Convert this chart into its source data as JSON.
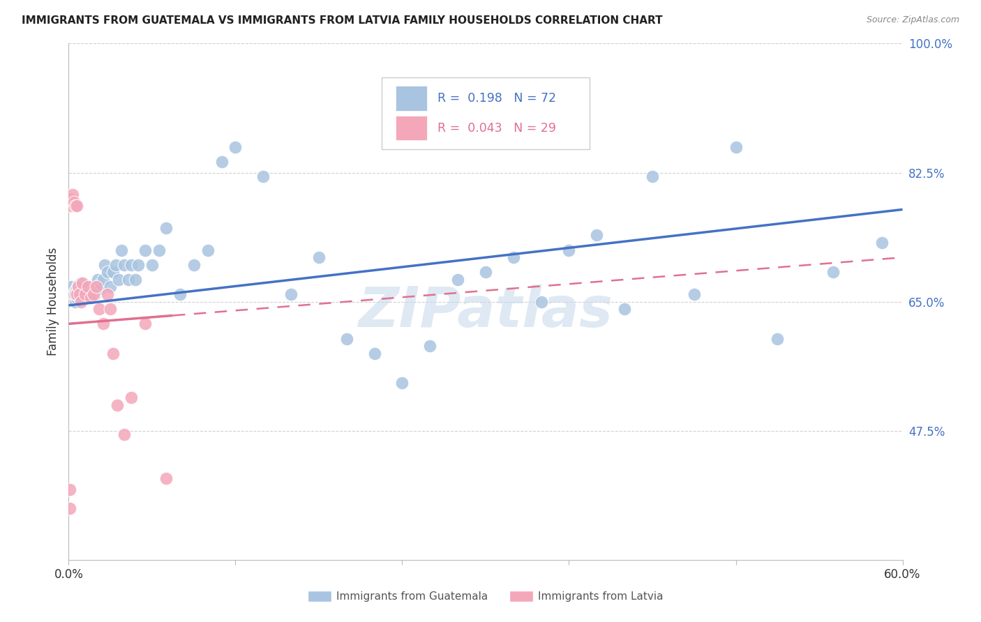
{
  "title": "IMMIGRANTS FROM GUATEMALA VS IMMIGRANTS FROM LATVIA FAMILY HOUSEHOLDS CORRELATION CHART",
  "source": "Source: ZipAtlas.com",
  "ylabel": "Family Households",
  "x_min": 0.0,
  "x_max": 0.6,
  "y_min": 0.3,
  "y_max": 1.0,
  "y_ticks_right": [
    1.0,
    0.825,
    0.65,
    0.475
  ],
  "y_tick_labels_right": [
    "100.0%",
    "82.5%",
    "65.0%",
    "47.5%"
  ],
  "legend_label1": "Immigrants from Guatemala",
  "legend_label2": "Immigrants from Latvia",
  "legend_R1": "0.198",
  "legend_N1": "72",
  "legend_R2": "0.043",
  "legend_N2": "29",
  "color_blue": "#a8c4e0",
  "color_blue_line": "#4472c4",
  "color_pink": "#f4a7b9",
  "color_pink_line": "#e07090",
  "color_grid": "#d0d0d0",
  "color_right_labels": "#4472c4",
  "blue_x": [
    0.002,
    0.003,
    0.004,
    0.005,
    0.005,
    0.006,
    0.006,
    0.007,
    0.007,
    0.008,
    0.008,
    0.009,
    0.009,
    0.01,
    0.01,
    0.011,
    0.012,
    0.012,
    0.013,
    0.014,
    0.015,
    0.015,
    0.016,
    0.017,
    0.018,
    0.019,
    0.02,
    0.021,
    0.022,
    0.023,
    0.025,
    0.026,
    0.028,
    0.03,
    0.032,
    0.034,
    0.036,
    0.038,
    0.04,
    0.043,
    0.045,
    0.048,
    0.05,
    0.055,
    0.06,
    0.065,
    0.07,
    0.08,
    0.09,
    0.1,
    0.11,
    0.12,
    0.14,
    0.16,
    0.18,
    0.2,
    0.22,
    0.24,
    0.26,
    0.28,
    0.3,
    0.32,
    0.34,
    0.36,
    0.38,
    0.4,
    0.42,
    0.45,
    0.48,
    0.51,
    0.55,
    0.585
  ],
  "blue_y": [
    0.67,
    0.66,
    0.66,
    0.65,
    0.665,
    0.655,
    0.668,
    0.66,
    0.672,
    0.66,
    0.67,
    0.662,
    0.675,
    0.658,
    0.668,
    0.665,
    0.67,
    0.672,
    0.668,
    0.66,
    0.655,
    0.665,
    0.67,
    0.66,
    0.665,
    0.66,
    0.665,
    0.68,
    0.672,
    0.668,
    0.68,
    0.7,
    0.69,
    0.67,
    0.69,
    0.7,
    0.68,
    0.72,
    0.7,
    0.68,
    0.7,
    0.68,
    0.7,
    0.72,
    0.7,
    0.72,
    0.75,
    0.66,
    0.7,
    0.72,
    0.84,
    0.86,
    0.82,
    0.66,
    0.71,
    0.6,
    0.58,
    0.54,
    0.59,
    0.68,
    0.69,
    0.71,
    0.65,
    0.72,
    0.74,
    0.64,
    0.82,
    0.66,
    0.86,
    0.6,
    0.69,
    0.73
  ],
  "pink_x": [
    0.001,
    0.001,
    0.002,
    0.002,
    0.003,
    0.004,
    0.005,
    0.005,
    0.006,
    0.006,
    0.007,
    0.008,
    0.009,
    0.01,
    0.012,
    0.014,
    0.016,
    0.018,
    0.02,
    0.022,
    0.025,
    0.028,
    0.03,
    0.032,
    0.035,
    0.04,
    0.045,
    0.055,
    0.07
  ],
  "pink_y": [
    0.395,
    0.37,
    0.79,
    0.78,
    0.795,
    0.785,
    0.78,
    0.66,
    0.66,
    0.78,
    0.67,
    0.66,
    0.65,
    0.675,
    0.66,
    0.67,
    0.655,
    0.66,
    0.67,
    0.64,
    0.62,
    0.66,
    0.64,
    0.58,
    0.51,
    0.47,
    0.52,
    0.62,
    0.41
  ],
  "watermark": "ZIPatlas",
  "figsize": [
    14.06,
    8.92
  ],
  "dpi": 100
}
